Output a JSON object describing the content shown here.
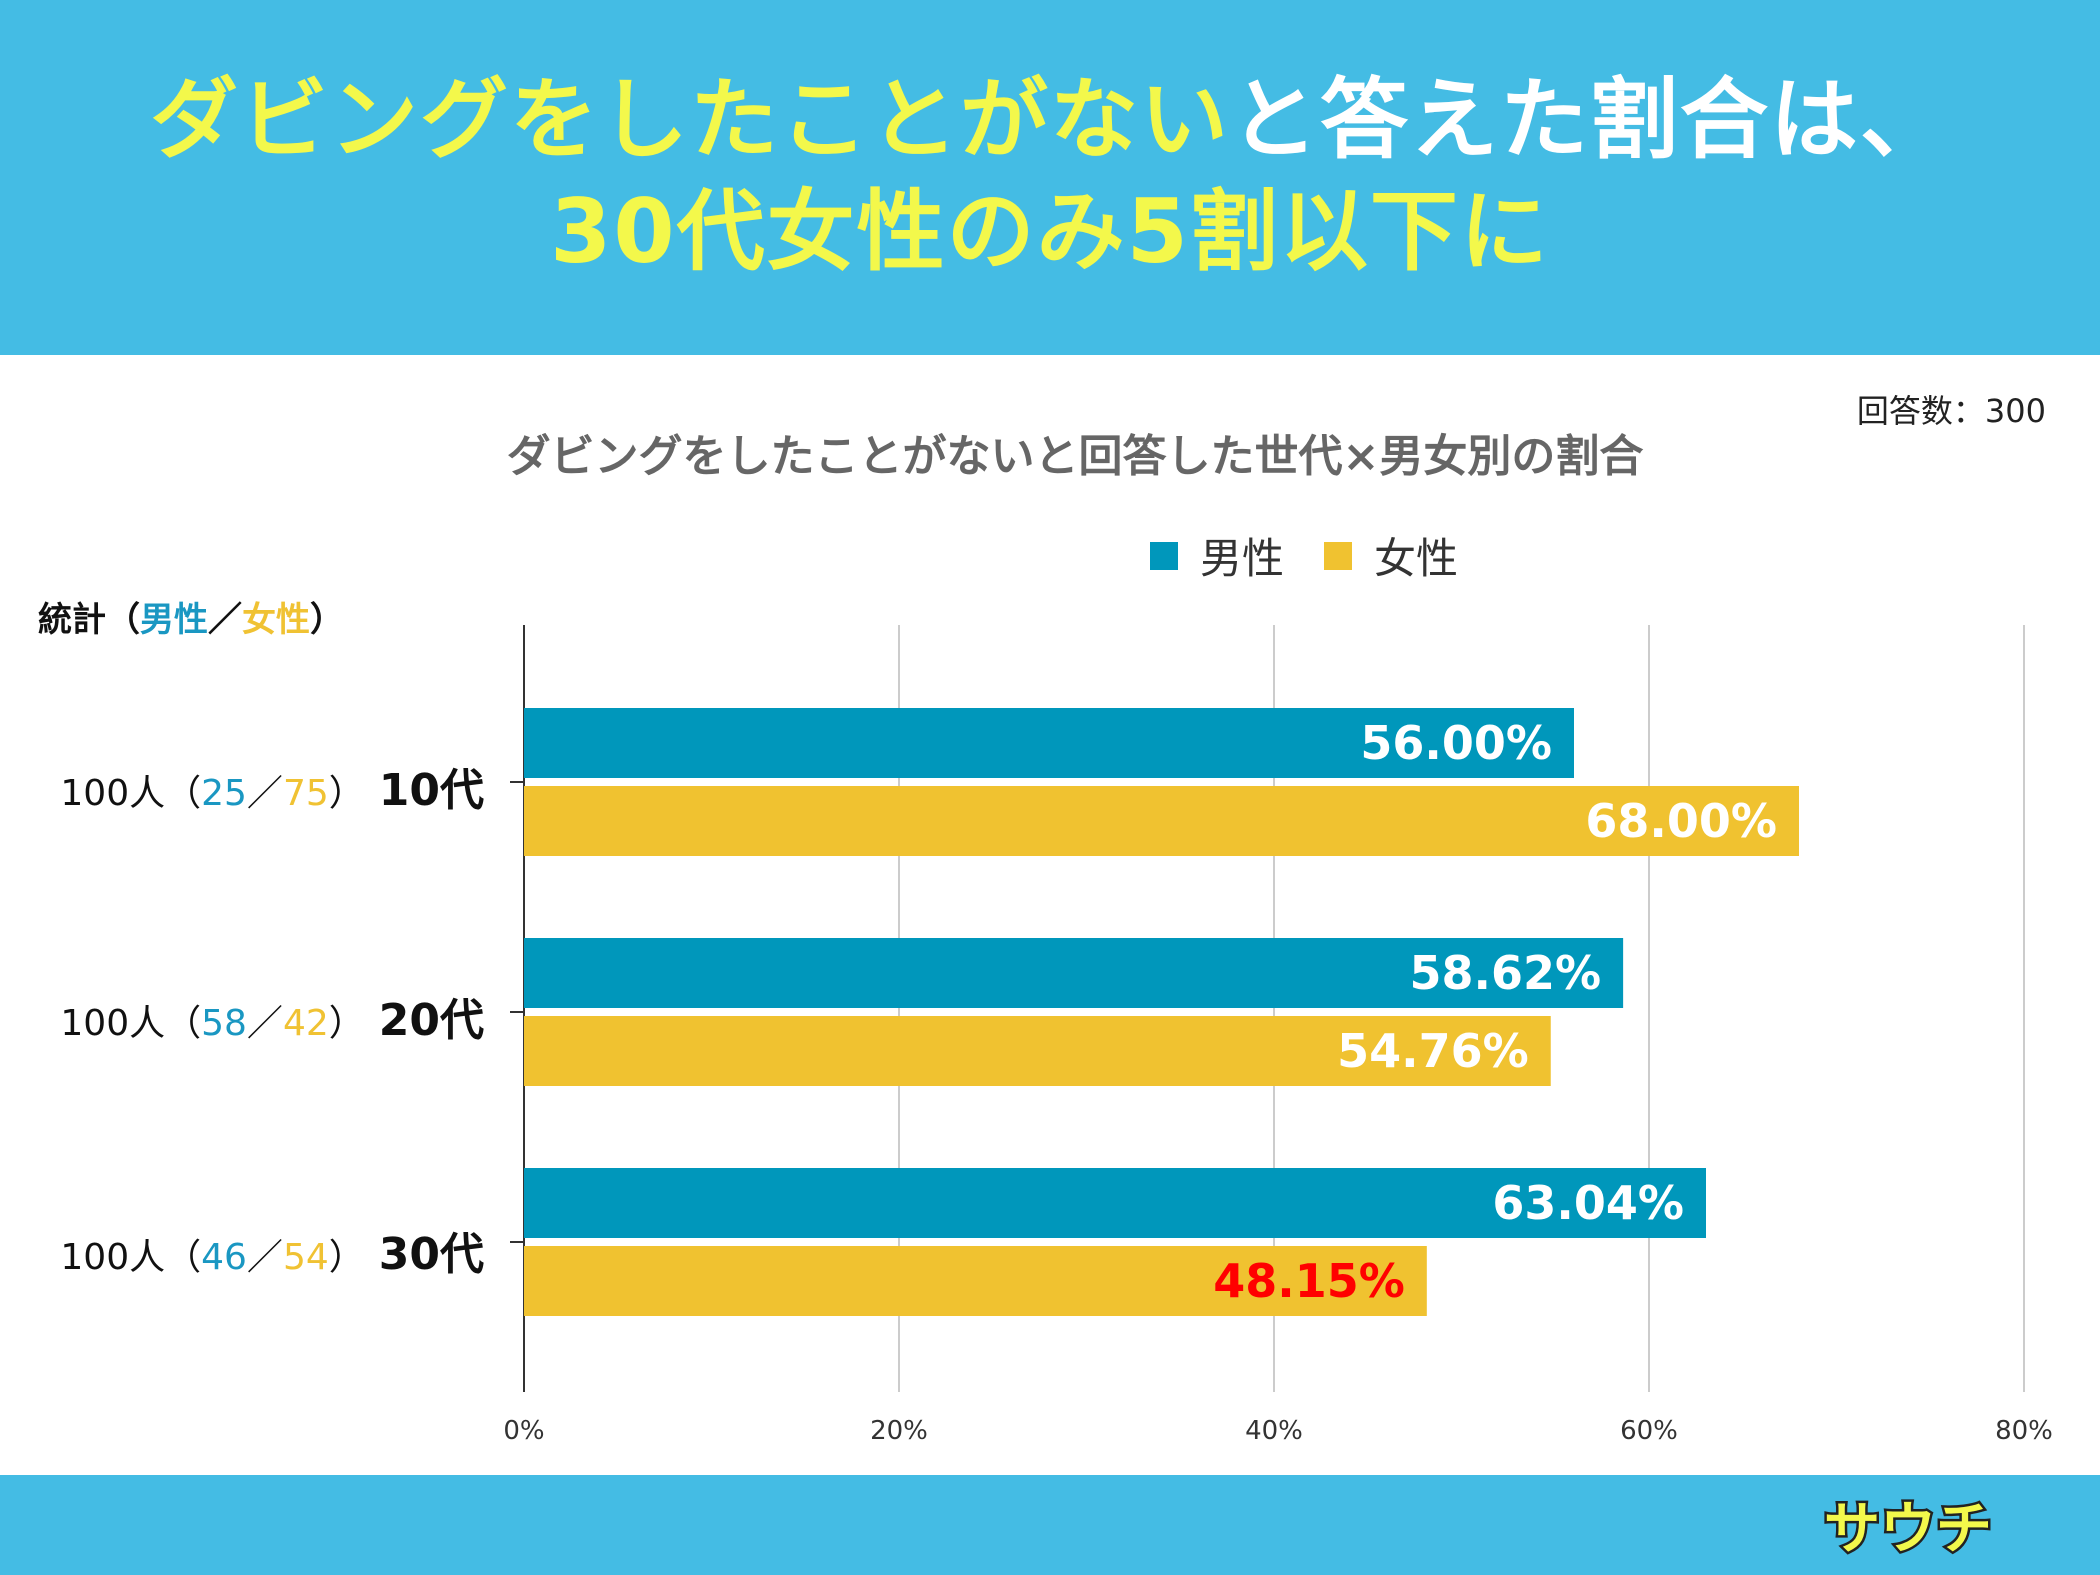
{
  "header": {
    "line1_highlight": "ダビングをしたことがない",
    "line1_rest": "と答えた割合は、",
    "line2": "30代女性のみ5割以下に"
  },
  "respondents": "回答数：300",
  "stats_header": {
    "prefix": "統計（",
    "male": "男性",
    "sep": "／",
    "female": "女性",
    "suffix": "）"
  },
  "rows": [
    {
      "total": "100人（",
      "male": "25",
      "sep": "／",
      "female": "75",
      "close": "）",
      "group": "10代"
    },
    {
      "total": "100人（",
      "male": "58",
      "sep": "／",
      "female": "42",
      "close": "）",
      "group": "20代"
    },
    {
      "total": "100人（",
      "male": "46",
      "sep": "／",
      "female": "54",
      "close": "）",
      "group": "30代"
    }
  ],
  "colors": {
    "header_bg": "#44bce4",
    "male": "#0097bb",
    "female": "#f0c230",
    "highlight_label": "#ff0000",
    "grid": "#cccccc"
  },
  "logo": {
    "text": "サウチ"
  },
  "chart_data": {
    "type": "bar",
    "orientation": "horizontal",
    "title": "ダビングをしたことがないと回答した世代×男女別の割合",
    "categories": [
      "10代",
      "20代",
      "30代"
    ],
    "series": [
      {
        "name": "男性",
        "values": [
          56.0,
          58.62,
          63.04
        ],
        "labels": [
          "56.00%",
          "58.62%",
          "63.04%"
        ]
      },
      {
        "name": "女性",
        "values": [
          68.0,
          54.76,
          48.15
        ],
        "labels": [
          "68.00%",
          "54.76%",
          "48.15%"
        ]
      }
    ],
    "highlighted": "48.15%",
    "xlim": [
      0,
      80
    ],
    "xticks": [
      "0%",
      "20%",
      "40%",
      "60%",
      "80%"
    ],
    "grid": true,
    "legend": "top"
  }
}
